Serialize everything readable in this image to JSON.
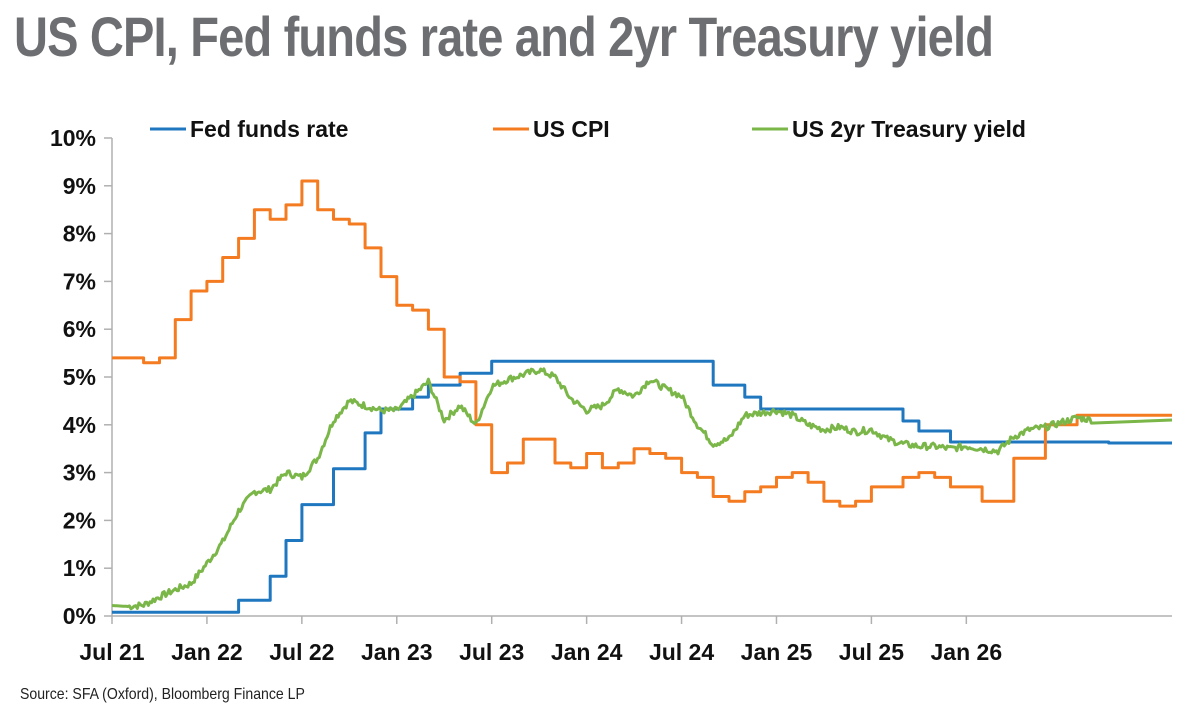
{
  "title": "US CPI, Fed funds rate and 2yr Treasury yield",
  "source": "Source: SFA (Oxford), Bloomberg Finance LP",
  "colors": {
    "fed": "#1f77c0",
    "cpi": "#f47b20",
    "treasury": "#7ab648",
    "axis": "#b0b0b0"
  },
  "chart_data": {
    "type": "line",
    "title": "US CPI, Fed funds rate and 2yr Treasury yield",
    "xlabel": "",
    "ylabel": "",
    "x_tick_labels": [
      "Jul 21",
      "Jan 22",
      "Jul 22",
      "Jan 23",
      "Jul 23",
      "Jan 24",
      "Jul 24",
      "Jan 25",
      "Jul 25",
      "Jan 26"
    ],
    "x_range": [
      "Jul 21",
      "Feb 27"
    ],
    "y_tick_labels": [
      "0%",
      "1%",
      "2%",
      "3%",
      "4%",
      "5%",
      "6%",
      "7%",
      "8%",
      "9%",
      "10%"
    ],
    "ylim": [
      0,
      10
    ],
    "legend_position": "top",
    "grid": false,
    "series": [
      {
        "name": "Fed funds rate",
        "color": "#1f77c0",
        "step": true,
        "points": [
          [
            "2021-07",
            0.08
          ],
          [
            "2022-03",
            0.33
          ],
          [
            "2022-05",
            0.83
          ],
          [
            "2022-06",
            1.58
          ],
          [
            "2022-07",
            2.33
          ],
          [
            "2022-09",
            3.08
          ],
          [
            "2022-11",
            3.83
          ],
          [
            "2022-12",
            4.33
          ],
          [
            "2023-02",
            4.58
          ],
          [
            "2023-03",
            4.83
          ],
          [
            "2023-05",
            5.08
          ],
          [
            "2023-07",
            5.33
          ],
          [
            "2024-09",
            4.83
          ],
          [
            "2024-11",
            4.58
          ],
          [
            "2024-12",
            4.33
          ],
          [
            "2025-09",
            4.08
          ],
          [
            "2025-10",
            3.87
          ],
          [
            "2025-12",
            3.64
          ],
          [
            "2026-10",
            3.62
          ]
        ]
      },
      {
        "name": "US CPI",
        "color": "#f47b20",
        "step": true,
        "points": [
          [
            "2021-07",
            5.4
          ],
          [
            "2021-08",
            5.4
          ],
          [
            "2021-09",
            5.3
          ],
          [
            "2021-10",
            5.4
          ],
          [
            "2021-11",
            6.2
          ],
          [
            "2021-12",
            6.8
          ],
          [
            "2022-01",
            7.0
          ],
          [
            "2022-02",
            7.5
          ],
          [
            "2022-03",
            7.9
          ],
          [
            "2022-04",
            8.5
          ],
          [
            "2022-05",
            8.3
          ],
          [
            "2022-06",
            8.6
          ],
          [
            "2022-07",
            9.1
          ],
          [
            "2022-08",
            8.5
          ],
          [
            "2022-09",
            8.3
          ],
          [
            "2022-10",
            8.2
          ],
          [
            "2022-11",
            7.7
          ],
          [
            "2022-12",
            7.1
          ],
          [
            "2023-01",
            6.5
          ],
          [
            "2023-02",
            6.4
          ],
          [
            "2023-03",
            6.0
          ],
          [
            "2023-04",
            5.0
          ],
          [
            "2023-05",
            4.9
          ],
          [
            "2023-06",
            4.0
          ],
          [
            "2023-07",
            3.0
          ],
          [
            "2023-08",
            3.2
          ],
          [
            "2023-09",
            3.7
          ],
          [
            "2023-10",
            3.7
          ],
          [
            "2023-11",
            3.2
          ],
          [
            "2023-12",
            3.1
          ],
          [
            "2024-01",
            3.4
          ],
          [
            "2024-02",
            3.1
          ],
          [
            "2024-03",
            3.2
          ],
          [
            "2024-04",
            3.5
          ],
          [
            "2024-05",
            3.4
          ],
          [
            "2024-06",
            3.3
          ],
          [
            "2024-07",
            3.0
          ],
          [
            "2024-08",
            2.9
          ],
          [
            "2024-09",
            2.5
          ],
          [
            "2024-10",
            2.4
          ],
          [
            "2024-11",
            2.6
          ],
          [
            "2024-12",
            2.7
          ],
          [
            "2025-01",
            2.9
          ],
          [
            "2025-02",
            3.0
          ],
          [
            "2025-03",
            2.8
          ],
          [
            "2025-04",
            2.4
          ],
          [
            "2025-05",
            2.3
          ],
          [
            "2025-06",
            2.4
          ],
          [
            "2025-07",
            2.7
          ],
          [
            "2025-08",
            2.7
          ],
          [
            "2025-09",
            2.9
          ],
          [
            "2025-10",
            3.0
          ],
          [
            "2025-11",
            2.9
          ],
          [
            "2025-12",
            2.7
          ],
          [
            "2026-01",
            2.7
          ],
          [
            "2026-02",
            2.4
          ],
          [
            "2026-04",
            3.3
          ],
          [
            "2026-06",
            4.0
          ],
          [
            "2026-08",
            4.2
          ],
          [
            "2026-09",
            4.2
          ]
        ]
      },
      {
        "name": "US 2yr Treasury yield",
        "color": "#7ab648",
        "step": false,
        "points": [
          [
            "2021-07",
            0.22
          ],
          [
            "2021-08",
            0.2
          ],
          [
            "2021-09",
            0.23
          ],
          [
            "2021-10",
            0.4
          ],
          [
            "2021-11",
            0.55
          ],
          [
            "2021-12",
            0.68
          ],
          [
            "2022-01",
            1.1
          ],
          [
            "2022-02",
            1.55
          ],
          [
            "2022-03",
            2.2
          ],
          [
            "2022-04",
            2.6
          ],
          [
            "2022-05",
            2.65
          ],
          [
            "2022-06",
            3.0
          ],
          [
            "2022-07",
            2.9
          ],
          [
            "2022-08",
            3.3
          ],
          [
            "2022-09",
            4.1
          ],
          [
            "2022-10",
            4.5
          ],
          [
            "2022-11",
            4.4
          ],
          [
            "2022-12",
            4.3
          ],
          [
            "2023-01",
            4.3
          ],
          [
            "2023-02",
            4.6
          ],
          [
            "2023-03",
            4.9
          ],
          [
            "2023-04",
            4.1
          ],
          [
            "2023-05",
            4.4
          ],
          [
            "2023-06",
            4.0
          ],
          [
            "2023-07",
            4.8
          ],
          [
            "2023-08",
            4.95
          ],
          [
            "2023-09",
            5.05
          ],
          [
            "2023-10",
            5.15
          ],
          [
            "2023-11",
            5.0
          ],
          [
            "2023-12",
            4.55
          ],
          [
            "2024-01",
            4.3
          ],
          [
            "2024-02",
            4.4
          ],
          [
            "2024-03",
            4.75
          ],
          [
            "2024-04",
            4.6
          ],
          [
            "2024-05",
            4.95
          ],
          [
            "2024-06",
            4.75
          ],
          [
            "2024-07",
            4.6
          ],
          [
            "2024-08",
            4.0
          ],
          [
            "2024-09",
            3.6
          ],
          [
            "2024-10",
            3.7
          ],
          [
            "2024-11",
            4.2
          ],
          [
            "2024-12",
            4.25
          ],
          [
            "2025-01",
            4.3
          ],
          [
            "2025-02",
            4.2
          ],
          [
            "2025-03",
            4.0
          ],
          [
            "2025-04",
            3.9
          ],
          [
            "2025-05",
            3.95
          ],
          [
            "2025-06",
            3.85
          ],
          [
            "2025-07",
            3.9
          ],
          [
            "2025-08",
            3.7
          ],
          [
            "2025-09",
            3.6
          ],
          [
            "2025-10",
            3.55
          ],
          [
            "2025-11",
            3.55
          ],
          [
            "2025-12",
            3.5
          ],
          [
            "2026-01",
            3.55
          ],
          [
            "2026-02",
            3.5
          ],
          [
            "2026-03",
            3.45
          ],
          [
            "2026-04",
            3.75
          ],
          [
            "2026-05",
            3.9
          ],
          [
            "2026-06",
            3.95
          ],
          [
            "2026-07",
            4.05
          ],
          [
            "2026-08",
            4.15
          ],
          [
            "2026-09",
            4.1
          ]
        ]
      }
    ]
  }
}
